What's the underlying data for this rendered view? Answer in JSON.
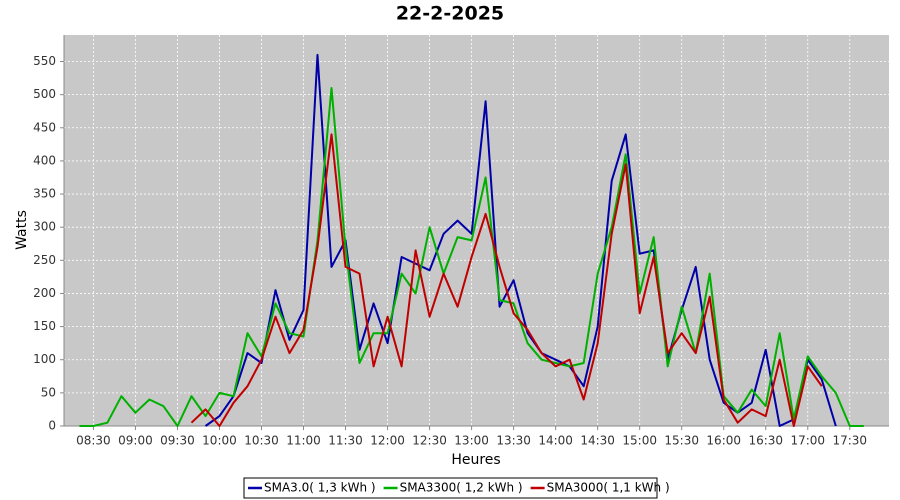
{
  "chart_data": {
    "type": "line",
    "title": "22-2-2025",
    "x_label": "Heures",
    "y_label": "Watts",
    "x": [
      "08:20",
      "08:30",
      "08:40",
      "08:50",
      "09:00",
      "09:10",
      "09:20",
      "09:30",
      "09:40",
      "09:50",
      "10:00",
      "10:10",
      "10:20",
      "10:30",
      "10:40",
      "10:50",
      "11:00",
      "11:10",
      "11:20",
      "11:30",
      "11:40",
      "11:50",
      "12:00",
      "12:10",
      "12:20",
      "12:30",
      "12:40",
      "12:50",
      "13:00",
      "13:10",
      "13:20",
      "13:30",
      "13:40",
      "13:50",
      "14:00",
      "14:10",
      "14:20",
      "14:30",
      "14:40",
      "14:50",
      "15:00",
      "15:10",
      "15:20",
      "15:30",
      "15:40",
      "15:50",
      "16:00",
      "16:10",
      "16:20",
      "16:30",
      "16:40",
      "16:50",
      "17:00",
      "17:10",
      "17:20",
      "17:30",
      "17:40"
    ],
    "series": [
      {
        "name": "SMA3.0( 1,3 kWh )",
        "color": "#0000a8",
        "values": [
          null,
          null,
          null,
          null,
          null,
          null,
          null,
          null,
          null,
          0,
          15,
          45,
          110,
          95,
          205,
          130,
          175,
          560,
          240,
          280,
          115,
          185,
          125,
          255,
          245,
          235,
          290,
          310,
          290,
          490,
          180,
          220,
          140,
          110,
          100,
          90,
          60,
          150,
          370,
          440,
          260,
          265,
          100,
          175,
          240,
          100,
          35,
          20,
          35,
          115,
          0,
          10,
          100,
          70,
          0,
          null,
          null
        ]
      },
      {
        "name": "SMA3300( 1,2 kWh )",
        "color": "#00b000",
        "values": [
          0,
          0,
          5,
          45,
          20,
          40,
          30,
          0,
          45,
          15,
          50,
          45,
          140,
          105,
          185,
          140,
          135,
          280,
          510,
          270,
          95,
          140,
          140,
          230,
          200,
          300,
          230,
          285,
          280,
          375,
          190,
          185,
          125,
          100,
          95,
          90,
          95,
          230,
          300,
          410,
          200,
          285,
          90,
          180,
          110,
          230,
          45,
          20,
          55,
          30,
          140,
          10,
          105,
          75,
          50,
          0,
          0
        ]
      },
      {
        "name": "SMA3000( 1,1 kWh )",
        "color": "#c00000",
        "values": [
          null,
          null,
          null,
          null,
          null,
          null,
          null,
          null,
          5,
          25,
          0,
          35,
          60,
          100,
          165,
          110,
          145,
          270,
          440,
          240,
          230,
          90,
          165,
          90,
          265,
          165,
          230,
          180,
          255,
          320,
          240,
          170,
          145,
          110,
          90,
          100,
          40,
          125,
          290,
          395,
          170,
          255,
          110,
          140,
          110,
          195,
          40,
          5,
          25,
          15,
          100,
          0,
          90,
          60,
          null,
          null,
          null
        ]
      }
    ],
    "xlim": [
      "08:09",
      "17:58"
    ],
    "xticks": [
      "08:30",
      "09:00",
      "09:30",
      "10:00",
      "10:30",
      "11:00",
      "11:30",
      "12:00",
      "12:30",
      "13:00",
      "13:30",
      "14:00",
      "14:30",
      "15:00",
      "15:30",
      "16:00",
      "16:30",
      "17:00",
      "17:30"
    ],
    "ylim": [
      0,
      590
    ],
    "yticks": [
      0,
      50,
      100,
      150,
      200,
      250,
      300,
      350,
      400,
      450,
      500,
      550
    ],
    "grid": true,
    "legend": "bottom"
  }
}
